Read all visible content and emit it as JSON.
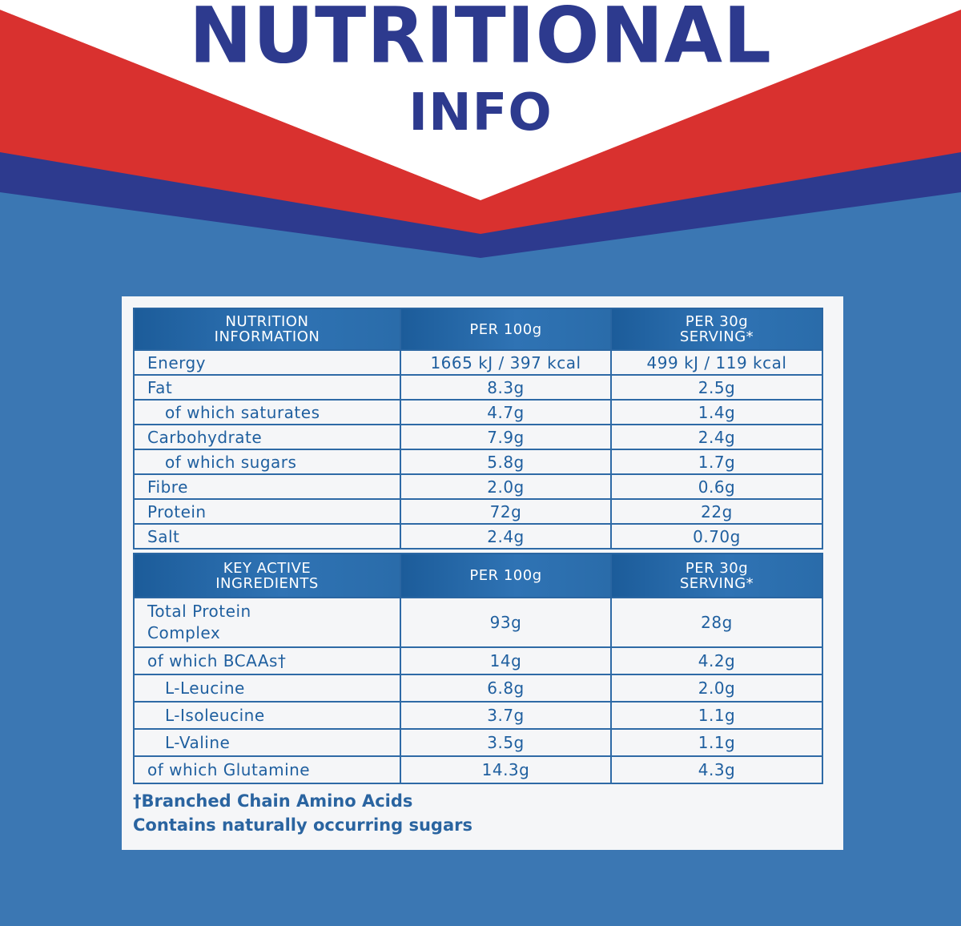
{
  "header": {
    "title_line1": "NUTRITIONAL",
    "title_line2": "INFO"
  },
  "colors": {
    "navy": "#2d3a8e",
    "red": "#d9312f",
    "background_blue": "#3b77b3",
    "table_blue": "#1f5f9f"
  },
  "nutrition_table": {
    "columns": [
      "NUTRITION INFORMATION",
      "PER 100g",
      "PER 30g SERVING*"
    ],
    "rows": [
      {
        "label": "Energy",
        "per100": "1665 kJ / 397 kcal",
        "per30": "499 kJ / 119 kcal"
      },
      {
        "label": "Fat",
        "per100": "8.3g",
        "per30": "2.5g"
      },
      {
        "label": "of which saturates",
        "per100": "4.7g",
        "per30": "1.4g"
      },
      {
        "label": "Carbohydrate",
        "per100": "7.9g",
        "per30": "2.4g"
      },
      {
        "label": "of which sugars",
        "per100": "5.8g",
        "per30": "1.7g"
      },
      {
        "label": "Fibre",
        "per100": "2.0g",
        "per30": "0.6g"
      },
      {
        "label": "Protein",
        "per100": "72g",
        "per30": "22g"
      },
      {
        "label": "Salt",
        "per100": "2.4g",
        "per30": "0.70g"
      }
    ]
  },
  "key_table": {
    "columns": [
      "KEY ACTIVE INGREDIENTS",
      "PER 100g",
      "PER 30g SERVING*"
    ],
    "rows": [
      {
        "label": "Total Protein Complex",
        "per100": "93g",
        "per30": "28g"
      },
      {
        "label": "of which BCAAs†",
        "per100": "14g",
        "per30": "4.2g"
      },
      {
        "label": "L-Leucine",
        "per100": "6.8g",
        "per30": "2.0g"
      },
      {
        "label": "L-Isoleucine",
        "per100": "3.7g",
        "per30": "1.1g"
      },
      {
        "label": "L-Valine",
        "per100": "3.5g",
        "per30": "1.1g"
      },
      {
        "label": "of which Glutamine",
        "per100": "14.3g",
        "per30": "4.3g"
      }
    ]
  },
  "footnotes": {
    "bcaa": "†Branched Chain Amino Acids",
    "sugars": "Contains naturally occurring sugars"
  }
}
